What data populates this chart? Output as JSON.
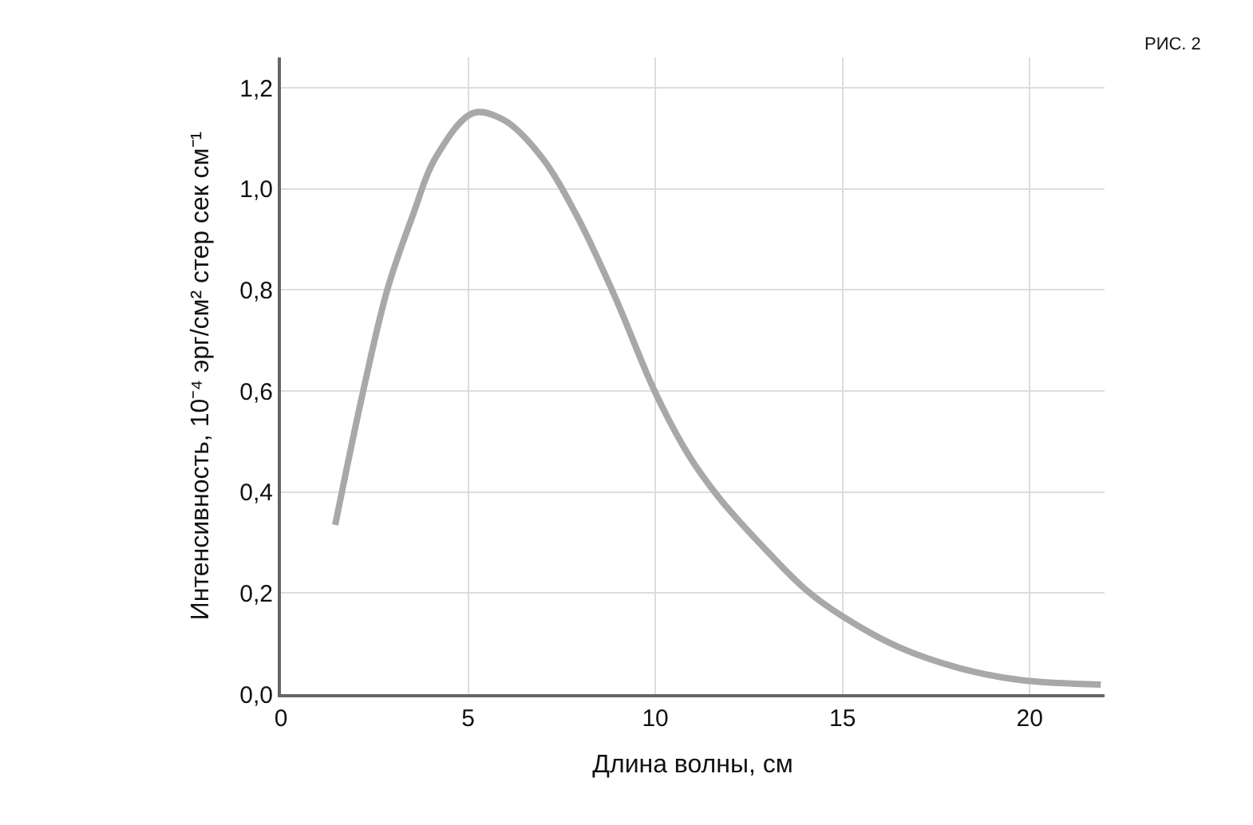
{
  "chart_data": {
    "type": "line",
    "xlabel": "Длина волны, см",
    "ylabel": "Интенсивность, 10⁻⁴ эрг/см² стер сек см⁻¹",
    "annotations": [
      "РИС. 2"
    ],
    "x": [
      1.45,
      2.18,
      2.84,
      3.5,
      4.15,
      5.14,
      5.96,
      6.95,
      7.93,
      8.92,
      9.98,
      10.89,
      11.7,
      12.86,
      14.0,
      15.0,
      16.47,
      18.1,
      19.75,
      21.9
    ],
    "series": [
      {
        "color": "#a8a8a8",
        "values": [
          0.335,
          0.594,
          0.8,
          0.943,
          1.064,
          1.15,
          1.136,
          1.064,
          0.943,
          0.787,
          0.6,
          0.473,
          0.389,
          0.293,
          0.208,
          0.154,
          0.094,
          0.052,
          0.028,
          0.019
        ]
      }
    ],
    "xlim": [
      0,
      22
    ],
    "xticks": [
      0,
      5,
      10,
      15,
      20
    ],
    "ylim": [
      0,
      1.26
    ],
    "yticks": [
      {
        "value": 0,
        "label": "0,0"
      },
      {
        "value": 0.2,
        "label": "0,2"
      },
      {
        "value": 0.4,
        "label": "0,4"
      },
      {
        "value": 0.6,
        "label": "0,6"
      },
      {
        "value": 0.8,
        "label": "0,8"
      },
      {
        "value": 1.0,
        "label": "1,0"
      },
      {
        "value": 1.2,
        "label": "1,2"
      }
    ],
    "grid": true,
    "marker": "none",
    "line_style": "solid"
  }
}
